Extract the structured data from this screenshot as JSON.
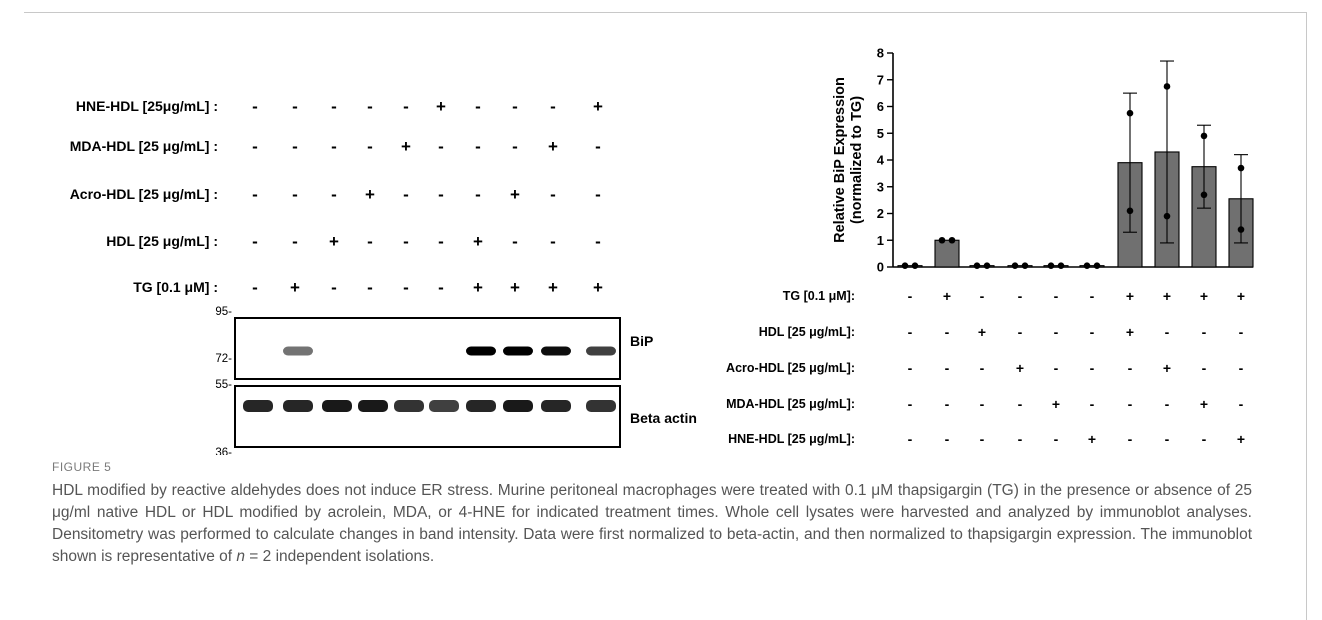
{
  "figure": {
    "label": "FIGURE 5",
    "caption_parts": [
      "HDL modified by reactive aldehydes does not induce ER stress. Murine peritoneal macrophages were treated with 0.1 μM thapsigargin (TG) in the presence or absence of 25 μg/ml native HDL or HDL modified by acrolein, MDA, or 4-HNE for indicated treatment times. Whole cell lysates were harvested and analyzed by immunoblot analyses. Densitometry was performed to calculate changes in band intensity. Data were first normalized to beta-actin, and then normalized to thapsigargin expression. The immunoblot shown is representative of ",
      "n",
      " = 2 independent isolations."
    ]
  },
  "blot": {
    "rows": [
      {
        "label": "HNE-HDL [25μg/mL] :",
        "signs": [
          "-",
          "-",
          "-",
          "-",
          "-",
          "+",
          "-",
          "-",
          "-",
          "+"
        ]
      },
      {
        "label": "MDA-HDL [25 μg/mL] :",
        "signs": [
          "-",
          "-",
          "-",
          "-",
          "+",
          "-",
          "-",
          "-",
          "+",
          "-"
        ]
      },
      {
        "label": "Acro-HDL [25 μg/mL] :",
        "signs": [
          "-",
          "-",
          "-",
          "+",
          "-",
          "-",
          "-",
          "+",
          "-",
          "-"
        ]
      },
      {
        "label": "HDL [25 μg/mL] :",
        "signs": [
          "-",
          "-",
          "+",
          "-",
          "-",
          "-",
          "+",
          "-",
          "-",
          "-"
        ]
      },
      {
        "label": "TG [0.1 μM] :",
        "signs": [
          "-",
          "+",
          "-",
          "-",
          "-",
          "-",
          "+",
          "+",
          "+",
          "+"
        ]
      }
    ],
    "panels": [
      {
        "name": "BiP",
        "markers": [
          "95-",
          "72-"
        ],
        "band_intensity": [
          0,
          0.55,
          0,
          0,
          0,
          0,
          1,
          1,
          0.95,
          0.75
        ]
      },
      {
        "name": "Beta actin",
        "markers": [
          "55-",
          "36-"
        ],
        "band_intensity": [
          0.85,
          0.85,
          0.9,
          0.9,
          0.8,
          0.75,
          0.85,
          0.9,
          0.85,
          0.8
        ]
      }
    ]
  },
  "chart_data": {
    "type": "bar",
    "ylabel_lines": [
      "Relative BiP Expression",
      "(normalized to TG)"
    ],
    "ylim": [
      0,
      8
    ],
    "yticks": [
      "0",
      "1",
      "2",
      "3",
      "4",
      "5",
      "6",
      "7",
      "8"
    ],
    "values": [
      0.05,
      1.0,
      0.05,
      0.05,
      0.05,
      0.05,
      3.9,
      4.3,
      3.75,
      2.55
    ],
    "errors": [
      0,
      0,
      0,
      0,
      0,
      0,
      2.6,
      3.4,
      1.55,
      1.65
    ],
    "points": [
      [
        0.05,
        0.05
      ],
      [
        1.0,
        1.0
      ],
      [
        0.05,
        0.05
      ],
      [
        0.05,
        0.05
      ],
      [
        0.05,
        0.05
      ],
      [
        0.05,
        0.05
      ],
      [
        5.75,
        2.1
      ],
      [
        6.75,
        1.9
      ],
      [
        4.9,
        2.7
      ],
      [
        3.7,
        1.4
      ]
    ],
    "bar_color": "#707070",
    "condition_rows": [
      {
        "label": "TG [0.1 μM]:",
        "signs": [
          "-",
          "+",
          "-",
          "-",
          "-",
          "-",
          "+",
          "+",
          "+",
          "+"
        ]
      },
      {
        "label": "HDL [25 μg/mL]:",
        "signs": [
          "-",
          "-",
          "+",
          "-",
          "-",
          "-",
          "+",
          "-",
          "-",
          "-"
        ]
      },
      {
        "label": "Acro-HDL [25 μg/mL]:",
        "signs": [
          "-",
          "-",
          "-",
          "+",
          "-",
          "-",
          "-",
          "+",
          "-",
          "-"
        ]
      },
      {
        "label": "MDA-HDL [25 μg/mL]:",
        "signs": [
          "-",
          "-",
          "-",
          "-",
          "+",
          "-",
          "-",
          "-",
          "+",
          "-"
        ]
      },
      {
        "label": "HNE-HDL [25 μg/mL]:",
        "signs": [
          "-",
          "-",
          "-",
          "-",
          "-",
          "+",
          "-",
          "-",
          "-",
          "+"
        ]
      }
    ]
  }
}
